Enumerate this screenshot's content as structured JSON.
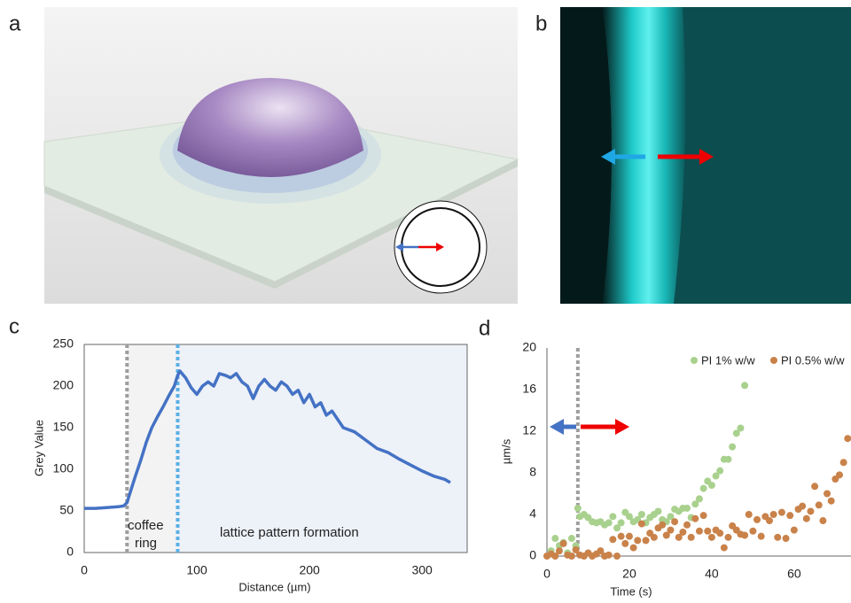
{
  "panel_labels": [
    "a",
    "b",
    "c",
    "d"
  ],
  "chart_data": [
    {
      "type": "line",
      "ylabel": "Grey Value",
      "xlabel": "Distance (µm)",
      "annotations": [
        "coffee",
        "ring",
        "lattice pattern formation"
      ],
      "x": [
        0,
        10,
        20,
        30,
        35,
        38,
        45,
        50,
        55,
        60,
        65,
        70,
        75,
        80,
        83,
        85,
        90,
        95,
        100,
        105,
        110,
        115,
        120,
        125,
        130,
        135,
        140,
        145,
        150,
        155,
        160,
        165,
        170,
        175,
        180,
        185,
        190,
        195,
        200,
        205,
        210,
        215,
        220,
        225,
        230,
        240,
        250,
        260,
        270,
        280,
        290,
        300,
        310,
        320,
        325
      ],
      "values": [
        53,
        53,
        54,
        55,
        56,
        60,
        90,
        110,
        132,
        150,
        163,
        175,
        188,
        200,
        213,
        218,
        210,
        198,
        190,
        200,
        205,
        200,
        215,
        213,
        210,
        215,
        205,
        200,
        185,
        200,
        208,
        200,
        195,
        205,
        200,
        190,
        195,
        180,
        190,
        175,
        180,
        165,
        170,
        160,
        150,
        145,
        135,
        125,
        120,
        112,
        105,
        98,
        92,
        88,
        84
      ],
      "color": "#4472c4",
      "xlim": [
        0,
        340
      ],
      "ylim": [
        0,
        250
      ],
      "xticks": [
        0,
        100,
        200,
        300
      ],
      "yticks": [
        0,
        50,
        100,
        150,
        200,
        250
      ],
      "vlines": [
        {
          "x": 38,
          "color": "#9e9e9e"
        },
        {
          "x": 83,
          "color": "#5ab0e6"
        }
      ],
      "regions": [
        {
          "from": 38,
          "to": 83,
          "color": "#f3f3f3"
        },
        {
          "from": 83,
          "to": 340,
          "color": "#edf1f8"
        }
      ]
    },
    {
      "type": "scatter",
      "ylabel": "µm/s",
      "xlabel": "Time (s)",
      "xlim": [
        0,
        73.8
      ],
      "ylim": [
        0,
        20
      ],
      "xticks": [
        0,
        20,
        40,
        60
      ],
      "yticks": [
        0,
        4,
        8,
        12,
        16,
        20
      ],
      "vlines": [
        {
          "x": 7.5,
          "color": "#9e9e9e"
        }
      ],
      "series": [
        {
          "name": "PI 1% w/w",
          "color": "#a9d18e",
          "x": [
            1,
            2,
            3,
            4,
            5,
            6,
            7,
            7.5,
            8,
            9,
            10,
            11,
            12,
            13,
            14,
            15,
            16,
            17,
            18,
            19,
            20,
            21,
            22,
            23,
            24,
            25,
            26,
            27,
            28,
            29,
            30,
            31,
            32,
            33,
            34,
            35,
            36,
            37,
            38,
            39,
            40,
            41,
            42,
            43,
            44,
            45,
            46,
            47,
            48
          ],
          "values": [
            0.5,
            1.7,
            1,
            1.3,
            0.3,
            1.7,
            1,
            4.6,
            3.8,
            4,
            3.7,
            3.3,
            3.2,
            3.3,
            3,
            3.2,
            3.8,
            2.7,
            3.2,
            4.2,
            3.8,
            3.3,
            3.5,
            4,
            3.2,
            3.7,
            4,
            4.3,
            3.5,
            3.3,
            3.8,
            4.5,
            4.3,
            4.6,
            4.6,
            3.7,
            5,
            5.5,
            6.5,
            7.2,
            6.8,
            7.7,
            8.2,
            9.3,
            9.3,
            10.5,
            11.8,
            12.3,
            16.4
          ]
        },
        {
          "name": "PI 0.5% w/w",
          "color": "#c9824a",
          "x": [
            0,
            1,
            2,
            3,
            4,
            5,
            6,
            7,
            8,
            9,
            10,
            11,
            12,
            13,
            14,
            15,
            16,
            17,
            18,
            19,
            20,
            21,
            22,
            23,
            24,
            25,
            26,
            27,
            28,
            29,
            30,
            31,
            32,
            33,
            34,
            35,
            36,
            37,
            38,
            39,
            40,
            41,
            42,
            43,
            44,
            45,
            46,
            47,
            48,
            49,
            50,
            51,
            52,
            53,
            54,
            55,
            56,
            57,
            58,
            59,
            60,
            61,
            62,
            63,
            64,
            65,
            66,
            67,
            68,
            69,
            70,
            71,
            72,
            73
          ],
          "values": [
            0,
            0.2,
            0,
            0.5,
            1.2,
            0.1,
            0,
            0.6,
            0.1,
            0,
            0.3,
            0,
            0.2,
            0.5,
            0,
            0.1,
            1.6,
            0,
            1.9,
            1.2,
            1.9,
            0.8,
            1.5,
            3.1,
            1.5,
            2.2,
            1.8,
            2.7,
            3,
            2,
            2.5,
            3.3,
            1.8,
            2.3,
            3,
            1.8,
            3.6,
            2.4,
            3.9,
            2.4,
            1.8,
            2.5,
            2.2,
            0.8,
            1.8,
            2.9,
            2.5,
            2.1,
            2,
            4,
            2.4,
            3.5,
            1.9,
            3.8,
            3.4,
            4,
            1.8,
            4.2,
            1.7,
            3.9,
            2.5,
            4.5,
            4.8,
            3.6,
            4.3,
            6.7,
            4.9,
            3.4,
            6,
            5.3,
            7.4,
            7.8,
            9,
            11.3
          ]
        }
      ]
    }
  ]
}
